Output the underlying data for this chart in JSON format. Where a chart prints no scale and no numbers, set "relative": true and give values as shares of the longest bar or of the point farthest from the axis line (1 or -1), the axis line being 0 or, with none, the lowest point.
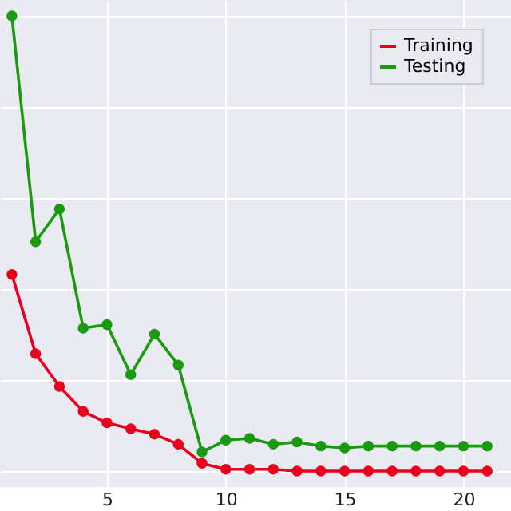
{
  "chart_data": {
    "type": "line",
    "relative": true,
    "x": [
      1,
      2,
      3,
      4,
      5,
      6,
      7,
      8,
      9,
      10,
      11,
      12,
      13,
      14,
      15,
      16,
      17,
      18,
      19,
      20,
      21
    ],
    "series": [
      {
        "name": "Training",
        "color": "#e8001c",
        "values": [
          0.432,
          0.258,
          0.186,
          0.131,
          0.106,
          0.093,
          0.081,
          0.059,
          0.017,
          0.004,
          0.004,
          0.004,
          0,
          0,
          0,
          0,
          0,
          0,
          0,
          0,
          0
        ]
      },
      {
        "name": "Testing",
        "color": "#1a9a10",
        "values": [
          1.0,
          0.504,
          0.576,
          0.314,
          0.322,
          0.212,
          0.301,
          0.233,
          0.042,
          0.068,
          0.072,
          0.059,
          0.064,
          0.055,
          0.051,
          0.055,
          0.055,
          0.055,
          0.055,
          0.055,
          0.055
        ]
      }
    ],
    "xlim": [
      0.5,
      22
    ],
    "xticks": [
      5,
      10,
      15,
      20
    ],
    "grid": true,
    "legend": "top right",
    "marker": "circle",
    "line_style": "solid"
  }
}
